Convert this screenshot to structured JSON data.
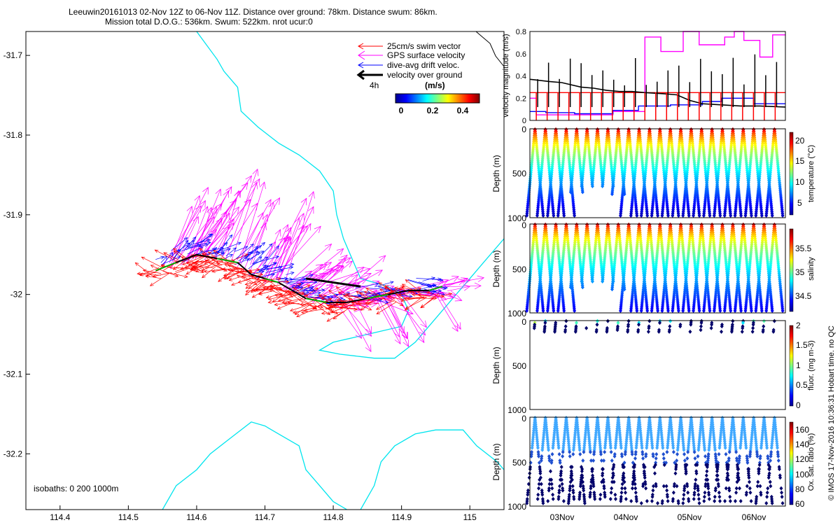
{
  "title": {
    "line1": "Leeuwin20161013 02-Nov 12Z to 06-Nov 11Z. Distance over ground: 78km. Distance swum: 86km.",
    "line2": "Mission total D.O.G.: 536km. Swum: 522km. nrot ucur:0"
  },
  "side_note": "© IMOS 17-Nov-2016 10:36:31 Hobart time. no QC",
  "colors": {
    "swim": "#ff0000",
    "gps": "#ff00ff",
    "drift": "#0000ff",
    "ground": "#000000",
    "coast": "#00e5ee"
  },
  "map": {
    "legend": {
      "swim": "25cm/s swim vector",
      "gps": "GPS surface velocity",
      "drift": "dive-avg drift veloc.",
      "ground": "velocity over ground",
      "four_h": "4h",
      "units": "(m/s)",
      "cb_ticks": [
        "0",
        "0.2",
        "0.4"
      ]
    },
    "isobaths": "isobaths: 0   200  1000m",
    "x_ticks": [
      "114.4",
      "114.5",
      "114.6",
      "114.7",
      "114.8",
      "114.9",
      "115"
    ],
    "y_ticks": [
      "-31.7",
      "-31.8",
      "-31.9",
      "-32",
      "-32.1",
      "-32.2"
    ]
  },
  "panels": {
    "vel": {
      "ylabel": "velocity magnitude (m/s)",
      "y_ticks": [
        "0",
        "0.2",
        "0.4",
        "0.6",
        "0.8"
      ]
    },
    "temp": {
      "ylabel": "Depth (m)",
      "clabel": "temperature (°C)",
      "y_ticks": [
        "0",
        "500",
        "1000"
      ],
      "c_ticks": [
        "5",
        "10",
        "15",
        "20"
      ]
    },
    "sal": {
      "ylabel": "Depth (m)",
      "clabel": "salinity",
      "y_ticks": [
        "0",
        "500",
        "1000"
      ],
      "c_ticks": [
        "34.5",
        "35",
        "35.5"
      ]
    },
    "fluor": {
      "ylabel": "Depth (m)",
      "clabel": "fluor. (mg m-3)",
      "y_ticks": [
        "0",
        "500",
        "1000"
      ],
      "c_ticks": [
        "0",
        "0.5",
        "1",
        "1.5",
        "2"
      ]
    },
    "oxy": {
      "ylabel": "Depth (m)",
      "clabel": "Ox. sat. ratio (%)",
      "y_ticks": [
        "0",
        "500",
        "1000"
      ],
      "c_ticks": [
        "60",
        "80",
        "100",
        "120",
        "140",
        "160"
      ]
    },
    "x_ticks": [
      "03Nov",
      "04Nov",
      "05Nov",
      "06Nov"
    ]
  },
  "chart_data": [
    {
      "type": "scatter",
      "subtype": "vector-map",
      "xlim": [
        114.35,
        115.05
      ],
      "ylim": [
        -32.27,
        -31.67
      ],
      "track": [
        [
          114.54,
          -31.97
        ],
        [
          114.57,
          -31.96
        ],
        [
          114.6,
          -31.95
        ],
        [
          114.63,
          -31.955
        ],
        [
          114.66,
          -31.96
        ],
        [
          114.68,
          -31.975
        ],
        [
          114.7,
          -31.98
        ],
        [
          114.72,
          -31.985
        ],
        [
          114.74,
          -31.995
        ],
        [
          114.76,
          -32.005
        ],
        [
          114.79,
          -32.01
        ],
        [
          114.82,
          -32.01
        ],
        [
          114.85,
          -32.005
        ],
        [
          114.88,
          -32.0
        ],
        [
          114.91,
          -31.995
        ],
        [
          114.94,
          -31.995
        ],
        [
          114.96,
          -31.99
        ]
      ],
      "ground_segment": [
        [
          114.76,
          -31.98
        ],
        [
          114.8,
          -31.985
        ],
        [
          114.84,
          -31.99
        ]
      ],
      "coast": [
        [
          [
            114.6,
            -31.67
          ],
          [
            114.63,
            -31.705
          ],
          [
            114.64,
            -31.72
          ],
          [
            114.66,
            -31.74
          ],
          [
            114.665,
            -31.77
          ],
          [
            114.69,
            -31.79
          ],
          [
            114.72,
            -31.81
          ],
          [
            114.75,
            -31.825
          ],
          [
            114.78,
            -31.845
          ],
          [
            114.8,
            -31.87
          ],
          [
            114.805,
            -31.9
          ],
          [
            114.815,
            -31.93
          ],
          [
            114.83,
            -31.96
          ],
          [
            114.84,
            -31.98
          ],
          [
            114.88,
            -31.99
          ],
          [
            114.9,
            -32.0
          ],
          [
            114.91,
            -32.02
          ],
          [
            114.9,
            -32.04
          ],
          [
            114.85,
            -32.05
          ],
          [
            114.8,
            -32.06
          ],
          [
            114.78,
            -32.07
          ],
          [
            114.81,
            -32.075
          ],
          [
            114.86,
            -32.08
          ],
          [
            114.89,
            -32.08
          ],
          [
            114.92,
            -32.06
          ],
          [
            114.95,
            -32.03
          ],
          [
            114.98,
            -32.0
          ],
          [
            115.0,
            -31.98
          ],
          [
            115.02,
            -31.96
          ],
          [
            115.05,
            -31.93
          ]
        ],
        [
          [
            114.55,
            -32.27
          ],
          [
            114.57,
            -32.24
          ],
          [
            114.6,
            -32.22
          ],
          [
            114.62,
            -32.2
          ],
          [
            114.65,
            -32.18
          ],
          [
            114.68,
            -32.16
          ],
          [
            114.7,
            -32.165
          ],
          [
            114.72,
            -32.175
          ],
          [
            114.75,
            -32.19
          ],
          [
            114.76,
            -32.22
          ],
          [
            114.78,
            -32.24
          ],
          [
            114.8,
            -32.26
          ],
          [
            114.82,
            -32.27
          ]
        ],
        [
          [
            114.84,
            -32.27
          ],
          [
            114.86,
            -32.24
          ],
          [
            114.87,
            -32.21
          ],
          [
            114.89,
            -32.19
          ],
          [
            114.92,
            -32.175
          ],
          [
            114.95,
            -32.17
          ],
          [
            114.99,
            -32.17
          ],
          [
            115.01,
            -32.19
          ],
          [
            115.04,
            -32.21
          ],
          [
            115.05,
            -32.22
          ]
        ]
      ]
    },
    {
      "type": "line",
      "title": "",
      "ylabel": "velocity magnitude (m/s)",
      "xlim": [
        2.5,
        6.5
      ],
      "ylim": [
        0,
        0.8
      ],
      "x_labels": [
        "03Nov",
        "04Nov",
        "05Nov",
        "06Nov"
      ],
      "series": [
        {
          "values": [
            [
              2.5,
              0.25
            ],
            [
              6.5,
              0.25
            ]
          ]
        },
        {
          "values": [
            [
              2.5,
              0.2
            ],
            [
              2.6,
              0.2
            ],
            [
              2.6,
              0.05
            ],
            [
              3.8,
              0.05
            ],
            [
              3.8,
              0.08
            ],
            [
              4.3,
              0.08
            ],
            [
              4.3,
              0.75
            ],
            [
              4.55,
              0.75
            ],
            [
              4.55,
              0.62
            ],
            [
              4.9,
              0.62
            ],
            [
              4.9,
              0.8
            ],
            [
              5.15,
              0.8
            ],
            [
              5.15,
              0.68
            ],
            [
              5.55,
              0.68
            ],
            [
              5.55,
              0.75
            ],
            [
              5.7,
              0.75
            ],
            [
              5.7,
              0.8
            ],
            [
              5.85,
              0.8
            ],
            [
              5.85,
              0.72
            ],
            [
              6.1,
              0.72
            ],
            [
              6.1,
              0.57
            ],
            [
              6.3,
              0.57
            ],
            [
              6.3,
              0.77
            ],
            [
              6.5,
              0.77
            ]
          ]
        },
        {
          "values": [
            [
              2.5,
              0.08
            ],
            [
              2.75,
              0.08
            ],
            [
              2.75,
              0.07
            ],
            [
              3.2,
              0.07
            ],
            [
              3.2,
              0.06
            ],
            [
              3.8,
              0.06
            ],
            [
              3.8,
              0.09
            ],
            [
              4.2,
              0.09
            ],
            [
              4.2,
              0.13
            ],
            [
              4.7,
              0.13
            ],
            [
              4.7,
              0.14
            ],
            [
              5.2,
              0.14
            ],
            [
              5.2,
              0.17
            ],
            [
              5.5,
              0.17
            ],
            [
              5.5,
              0.2
            ],
            [
              6.0,
              0.2
            ],
            [
              6.0,
              0.15
            ],
            [
              6.5,
              0.15
            ]
          ]
        },
        {
          "values": [
            [
              2.5,
              0.37
            ],
            [
              2.8,
              0.35
            ],
            [
              3.0,
              0.34
            ],
            [
              3.3,
              0.3
            ],
            [
              3.5,
              0.29
            ],
            [
              3.7,
              0.27
            ],
            [
              3.9,
              0.26
            ],
            [
              4.1,
              0.26
            ],
            [
              4.3,
              0.25
            ],
            [
              4.6,
              0.24
            ],
            [
              4.8,
              0.23
            ],
            [
              5.0,
              0.18
            ],
            [
              5.2,
              0.15
            ],
            [
              5.5,
              0.14
            ],
            [
              5.8,
              0.13
            ],
            [
              6.1,
              0.13
            ],
            [
              6.5,
              0.12
            ]
          ]
        }
      ]
    },
    {
      "type": "scatter",
      "subtype": "depth-time section",
      "ylabel": "Depth (m)",
      "clabel": "temperature (°C)",
      "ylim": [
        1000,
        0
      ],
      "clim": [
        4,
        23
      ]
    },
    {
      "type": "scatter",
      "subtype": "depth-time section",
      "ylabel": "Depth (m)",
      "clabel": "salinity",
      "ylim": [
        1000,
        0
      ],
      "clim": [
        34.3,
        35.9
      ]
    },
    {
      "type": "scatter",
      "subtype": "depth-time section",
      "ylabel": "Depth (m)",
      "clabel": "fluor. (mg m-3)",
      "ylim": [
        1000,
        0
      ],
      "clim": [
        0,
        2
      ]
    },
    {
      "type": "scatter",
      "subtype": "depth-time section",
      "ylabel": "Depth (m)",
      "clabel": "Ox. sat. ratio (%)",
      "ylim": [
        1000,
        0
      ],
      "clim": [
        60,
        170
      ]
    }
  ]
}
